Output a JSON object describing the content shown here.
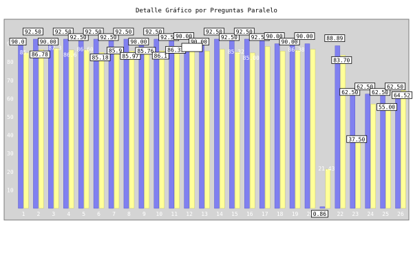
{
  "chart_data": {
    "type": "bar",
    "title": "Detalle Gráfico por Preguntas Paralelo",
    "xlabel": "",
    "ylabel": "",
    "ylim": [
      0,
      100
    ],
    "yticks": [
      10,
      20,
      30,
      40,
      50,
      60,
      70,
      80,
      90
    ],
    "grid": false,
    "legend": "none",
    "categories": [
      "1",
      "2",
      "3",
      "4",
      "5",
      "6",
      "7",
      "8",
      "9",
      "10",
      "11",
      "12",
      "13",
      "14",
      "15",
      "16",
      "17",
      "18",
      "19",
      "20",
      "21",
      "22",
      "23",
      "24",
      "25",
      "26"
    ],
    "series": [
      {
        "color": "#8080f0",
        "values": [
          90.0,
          92.5,
          90.0,
          92.5,
          92.5,
          92.5,
          92.5,
          92.5,
          90.0,
          92.5,
          92.5,
          90.0,
          90.0,
          92.5,
          92.5,
          92.5,
          92.5,
          90.0,
          90.0,
          90.0,
          0.86,
          88.89,
          62.5,
          62.5,
          62.5,
          62.5
        ],
        "labels": [
          "90.0",
          "92.50",
          "90.00",
          "92.50",
          "92.50",
          "92.50",
          "92.50",
          "92.50",
          "90.00",
          "92.50",
          "92.50",
          "90.00",
          "90.00",
          "92.50",
          "92.50",
          "92.50",
          "92.50",
          "90.00",
          "90.00",
          "90.00",
          "0.86",
          "88.89",
          "62.50",
          "62.50",
          "62.50",
          "62.50"
        ]
      },
      {
        "color": "#ffff99",
        "values": [
          85.0,
          86.78,
          87.34,
          86.6,
          86.6,
          85.18,
          85.9,
          85.97,
          85.76,
          86.1,
          86.31,
          86.0,
          86.0,
          87.0,
          85.32,
          85.0,
          88.5,
          86.0,
          86.38,
          87.0,
          21.43,
          83.7,
          37.5,
          57.0,
          55.0,
          64.52
        ],
        "labels": [
          "85.",
          "86.78",
          "87.3",
          "86.6",
          "86.60",
          "85.18",
          "85.9",
          "85.97",
          "85.76",
          "86.1",
          "86.31",
          "",
          "",
          "",
          "85.32",
          "85.00",
          "",
          "",
          "86.38",
          "",
          "21.43",
          "83.70",
          "37.50",
          "",
          "55.00",
          "64.52"
        ]
      }
    ]
  }
}
